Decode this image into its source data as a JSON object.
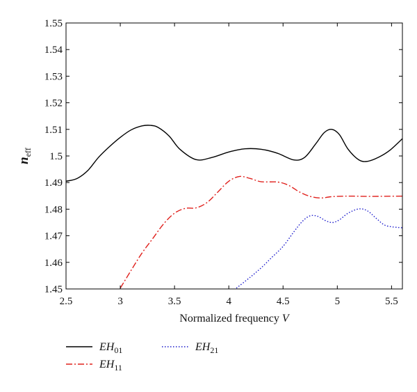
{
  "chart_data": {
    "type": "line",
    "title": "",
    "xlabel": "Normalized frequency",
    "xlabel_var": "V",
    "ylabel_main": "n",
    "ylabel_sub": "eff",
    "xlim": [
      2.5,
      5.6
    ],
    "ylim": [
      1.45,
      1.55
    ],
    "xticks": [
      {
        "v": 2.5,
        "label": "2.5"
      },
      {
        "v": 3,
        "label": "3"
      },
      {
        "v": 3.5,
        "label": "3.5"
      },
      {
        "v": 4,
        "label": "4"
      },
      {
        "v": 4.5,
        "label": "4.5"
      },
      {
        "v": 5,
        "label": "5"
      },
      {
        "v": 5.5,
        "label": "5.5"
      }
    ],
    "yticks": [
      {
        "v": 1.45,
        "label": "1.45"
      },
      {
        "v": 1.46,
        "label": "1.46"
      },
      {
        "v": 1.47,
        "label": "1.47"
      },
      {
        "v": 1.48,
        "label": "1.48"
      },
      {
        "v": 1.49,
        "label": "1.49"
      },
      {
        "v": 1.5,
        "label": "1.5"
      },
      {
        "v": 1.51,
        "label": "1.51"
      },
      {
        "v": 1.52,
        "label": "1.52"
      },
      {
        "v": 1.53,
        "label": "1.53"
      },
      {
        "v": 1.54,
        "label": "1.54"
      },
      {
        "v": 1.55,
        "label": "1.55"
      }
    ],
    "grid": false,
    "legend_position": "bottom-left",
    "series": [
      {
        "name": "EH",
        "name_sub": "01",
        "color": "#000000",
        "style": "solid",
        "x": [
          2.5,
          2.6,
          2.7,
          2.8,
          2.9,
          3.0,
          3.1,
          3.2,
          3.28,
          3.35,
          3.45,
          3.55,
          3.7,
          3.85,
          4.0,
          4.15,
          4.3,
          4.45,
          4.6,
          4.7,
          4.8,
          4.88,
          4.95,
          5.02,
          5.1,
          5.2,
          5.28,
          5.38,
          5.48,
          5.6
        ],
        "y": [
          1.4905,
          1.4915,
          1.4945,
          1.4995,
          1.5035,
          1.507,
          1.5098,
          1.5113,
          1.5115,
          1.5107,
          1.5075,
          1.5025,
          1.4986,
          1.4995,
          1.5015,
          1.5027,
          1.5025,
          1.501,
          1.4985,
          1.4995,
          1.5045,
          1.5088,
          1.51,
          1.508,
          1.5025,
          1.4985,
          1.498,
          1.4995,
          1.502,
          1.5065
        ]
      },
      {
        "name": "EH",
        "name_sub": "11",
        "color": "#e0201c",
        "style": "dashdot",
        "x": [
          3.0,
          3.1,
          3.2,
          3.3,
          3.4,
          3.5,
          3.6,
          3.7,
          3.8,
          3.9,
          4.0,
          4.1,
          4.2,
          4.3,
          4.45,
          4.55,
          4.65,
          4.75,
          4.85,
          4.95,
          5.1,
          5.3,
          5.6
        ],
        "y": [
          1.4503,
          1.457,
          1.4635,
          1.469,
          1.4745,
          1.4785,
          1.4803,
          1.4805,
          1.4825,
          1.4865,
          1.4905,
          1.4923,
          1.4915,
          1.4903,
          1.4902,
          1.489,
          1.4865,
          1.4848,
          1.4842,
          1.4847,
          1.4849,
          1.4848,
          1.4849
        ]
      },
      {
        "name": "EH",
        "name_sub": "21",
        "color": "#1a1acc",
        "style": "dotted",
        "x": [
          4.07,
          4.2,
          4.3,
          4.4,
          4.5,
          4.6,
          4.68,
          4.75,
          4.82,
          4.9,
          4.96,
          5.02,
          5.1,
          5.2,
          5.28,
          5.36,
          5.45,
          5.6
        ],
        "y": [
          1.4503,
          1.4545,
          1.458,
          1.462,
          1.466,
          1.4715,
          1.4755,
          1.4775,
          1.4773,
          1.4755,
          1.475,
          1.476,
          1.4785,
          1.4801,
          1.4793,
          1.4765,
          1.4738,
          1.473
        ]
      }
    ]
  }
}
